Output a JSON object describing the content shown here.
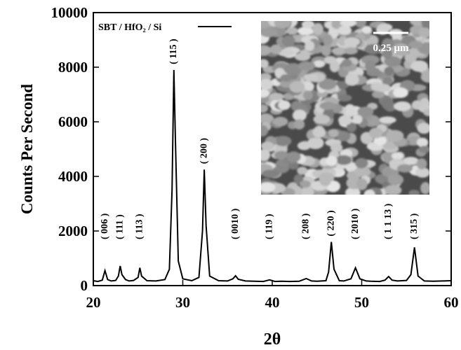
{
  "chart_data": {
    "type": "line",
    "x_label": "2θ",
    "y_label": "Counts Per Second",
    "xlim": [
      20,
      60
    ],
    "ylim": [
      0,
      10000
    ],
    "xticks": [
      20,
      30,
      40,
      50,
      60
    ],
    "yticks": [
      0,
      2000,
      4000,
      6000,
      8000,
      10000
    ],
    "series": [
      {
        "name": "SBT / HfO₂ / Si",
        "color": "#000000",
        "x": [
          20,
          20.5,
          21,
          21.3,
          21.6,
          22,
          22.5,
          22.8,
          23,
          23.2,
          23.6,
          24,
          24.5,
          25,
          25.2,
          25.4,
          26,
          27,
          28,
          28.5,
          28.8,
          29,
          29.2,
          29.5,
          30,
          31,
          31.8,
          32.2,
          32.4,
          32.6,
          33,
          34,
          35,
          35.6,
          35.9,
          36.2,
          37,
          38,
          39,
          39.7,
          40.3,
          41,
          42,
          43,
          43.8,
          44.4,
          45,
          46,
          46.3,
          46.6,
          46.9,
          47.5,
          48,
          48.8,
          49.3,
          49.8,
          50.5,
          51,
          52,
          52.6,
          53,
          53.4,
          54,
          55,
          55.5,
          55.9,
          56.3,
          57,
          58,
          59,
          60
        ],
        "values": [
          180,
          150,
          200,
          550,
          220,
          170,
          190,
          350,
          720,
          400,
          220,
          170,
          190,
          300,
          650,
          350,
          180,
          170,
          220,
          600,
          3500,
          7900,
          5000,
          900,
          250,
          180,
          300,
          2000,
          4250,
          2200,
          350,
          180,
          170,
          250,
          360,
          230,
          170,
          160,
          150,
          210,
          150,
          160,
          150,
          160,
          260,
          170,
          160,
          180,
          500,
          1600,
          600,
          180,
          170,
          250,
          650,
          250,
          170,
          160,
          150,
          200,
          330,
          200,
          170,
          190,
          400,
          1400,
          350,
          170,
          160,
          170,
          180
        ]
      }
    ],
    "annotations": [
      {
        "text": "( 006 )",
        "x": 21.3
      },
      {
        "text": "( 111 )",
        "x": 23.0
      },
      {
        "text": "( 113 )",
        "x": 25.2
      },
      {
        "text": "( 115 )",
        "x": 29.0
      },
      {
        "text": "( 200 )",
        "x": 32.4
      },
      {
        "text": "( 0010 )",
        "x": 35.9
      },
      {
        "text": "( 119 )",
        "x": 39.7
      },
      {
        "text": "( 208 )",
        "x": 43.8
      },
      {
        "text": "( 220 )",
        "x": 46.6
      },
      {
        "text": "( 2010 )",
        "x": 49.3
      },
      {
        "text": "( 1 1 13 )",
        "x": 53.0
      },
      {
        "text": "( 315 )",
        "x": 55.9
      }
    ],
    "inset_scale_label": "0.25 μm"
  }
}
